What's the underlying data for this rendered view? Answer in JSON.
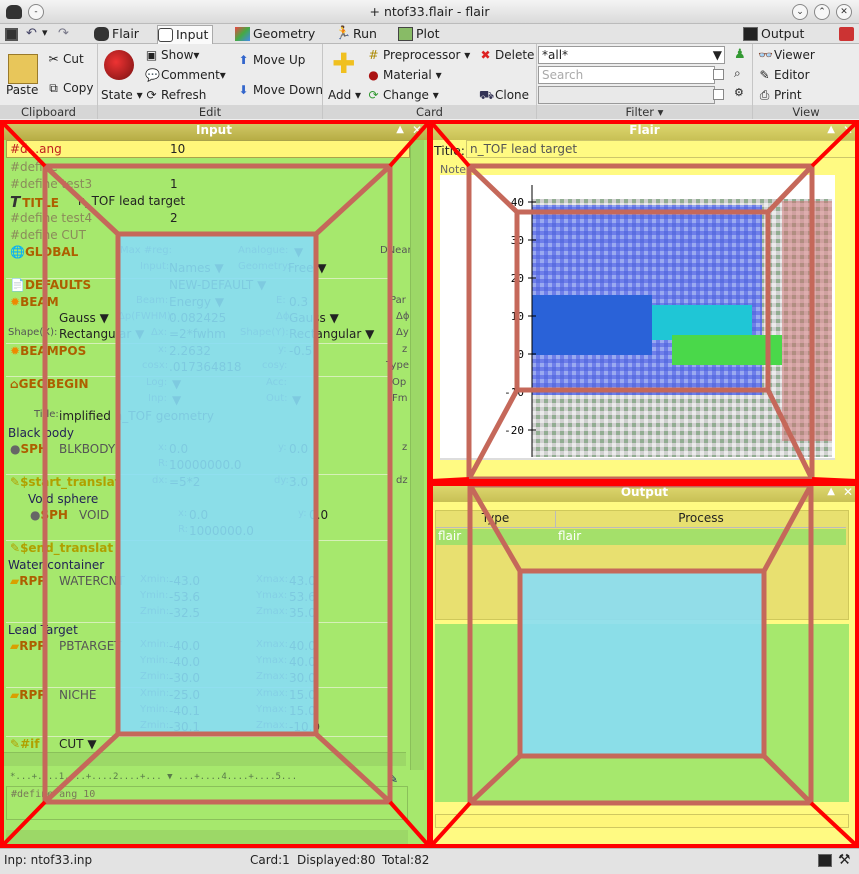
{
  "window": {
    "title": "+ ntof33.flair - flair"
  },
  "tabs": [
    {
      "label": "Flair"
    },
    {
      "label": "Input"
    },
    {
      "label": "Geometry"
    },
    {
      "label": "Run"
    },
    {
      "label": "Plot"
    }
  ],
  "output_tab": "Output",
  "clipboard": {
    "paste": "Paste",
    "cut": "Cut",
    "copy": "Copy",
    "label": "Clipboard"
  },
  "edit": {
    "state": "State",
    "show": "Show",
    "comment": "Comment",
    "refresh": "Refresh",
    "move_up": "Move Up",
    "move_down": "Move Down",
    "label": "Edit"
  },
  "card": {
    "add": "Add",
    "preprocessor": "Preprocessor",
    "material": "Material",
    "change": "Change",
    "delete": "Delete",
    "clone": "Clone",
    "label": "Card"
  },
  "filter": {
    "value": "*all*",
    "search_placeholder": "Search",
    "label": "Filter"
  },
  "view": {
    "viewer": "Viewer",
    "editor": "Editor",
    "print": "Print",
    "label": "View"
  },
  "input_panel": {
    "title": "Input",
    "l1": {
      "tag": "#d...ang",
      "val": "10"
    },
    "l2": "#define",
    "l3": {
      "tag": "#define test3",
      "val": "1"
    },
    "l4": {
      "tag": "TITLE",
      "val": "n_TOF lead target"
    },
    "l5": {
      "tag": "#define test4",
      "val": "2"
    },
    "l6": "#define CUT",
    "global": {
      "tag": "GLOBAL",
      "maxreg": "Max #reg:",
      "analogue": "Analogue:",
      "dnear": "DNear",
      "input_lbl": "Input:",
      "input_val": "Names",
      "geometry_lbl": "Geometry:",
      "geometry_val": "Free"
    },
    "defaults": {
      "tag": "DEFAULTS",
      "val": "NEW-DEFAULT"
    },
    "beam": {
      "tag": "BEAM",
      "beam_lbl": "Beam:",
      "beam_val": "Energy",
      "e_lbl": "E:",
      "e_val": "0.3",
      "par": "Par",
      "dp_val": "Gauss",
      "dp_lbl": "Δp(FWHM):",
      "dp_num": "0.082425",
      "dphi_lbl": "Δϕ:",
      "dphi_val": "Gauss",
      "dphi2": "Δϕ",
      "shapex_lbl": "Shape(X):",
      "shapex_val": "Rectangular",
      "dx_lbl": "Δx:",
      "dx_val": "=2*fwhm",
      "shapey_lbl": "Shape(Y):",
      "shapey_val": "Rectangular",
      "dy": "Δy"
    },
    "beampos": {
      "tag": "BEAMPOS",
      "x_lbl": "x:",
      "x_val": "2.2632",
      "y_lbl": "y:",
      "y_val": "-0.5",
      "z": "z",
      "cosx_lbl": "cosx:",
      "cosx_val": ".017364818",
      "cosy": "cosy:",
      "type": "Type"
    },
    "geobegin": {
      "tag": "GEOBEGIN",
      "log": "Log:",
      "acc": "Acc:",
      "op": "Op",
      "inp": "Inp:",
      "out": "Out:",
      "fmt": "Fm",
      "title_lbl": "Title:",
      "title_val": "implified n_TOF geometry"
    },
    "blackbody_comment": "Black body",
    "sph1": {
      "tag": "SPH",
      "name": "BLKBODY",
      "x": "x:",
      "xv": "0.0",
      "y": "y:",
      "yv": "0.0",
      "r": "R:",
      "rv": "10000000.0",
      "z": "z"
    },
    "start_translat": {
      "tag": "$start_translat",
      "dx": "dx:",
      "dxv": "=5*2",
      "dy": "dy:",
      "dyv": "3.0",
      "dz": "dz"
    },
    "void_comment": "Void sphere",
    "sph2": {
      "tag": "SPH",
      "name": "VOID",
      "x": "x:",
      "xv": "0.0",
      "y": "y:",
      "yv": "0.0",
      "r": "R:",
      "rv": "1000000.0"
    },
    "end_translat": "$end_translat",
    "water_comment": "Water container",
    "rpp1": {
      "tag": "RPP",
      "name": "WATERCNT",
      "xmin": "-43.0",
      "xmax": "43.0",
      "ymin": "-53.6",
      "ymax": "53.6",
      "zmin": "-32.5",
      "zmax": "35.0"
    },
    "lead_comment": "Lead Target",
    "rpp2": {
      "tag": "RPP",
      "name": "PBTARGET",
      "xmin": "-40.0",
      "xmax": "40.0",
      "ymin": "-40.0",
      "ymax": "40.0",
      "zmin": "-30.0",
      "zmax": "30.0"
    },
    "rpp3": {
      "tag": "RPP",
      "name": "NICHE",
      "xmin": "-25.0",
      "xmax": "15.0",
      "ymin": "-40.1",
      "ymax": "15.0",
      "zmin": "-30.1",
      "zmax": "-10.0"
    },
    "lbl_xmin": "Xmin:",
    "lbl_xmax": "Xmax:",
    "lbl_ymin": "Ymin:",
    "lbl_ymax": "Ymax:",
    "lbl_zmin": "Zmin:",
    "lbl_zmax": "Zmax:",
    "ifcut": {
      "tag": "#if",
      "val": "CUT"
    },
    "ruler": "*...+....1....+....2....+...  ▼  ...+....4....+....5...",
    "editor_line": "#define ang 10"
  },
  "flair_panel": {
    "title": "Flair",
    "title_lbl": "Title:",
    "title_val": "n_TOF lead target",
    "notes": "Notes"
  },
  "plot_axis": {
    "ticks": [
      "40",
      "30",
      "20",
      "10",
      "0",
      "-10",
      "-20"
    ]
  },
  "output_panel": {
    "title": "Output",
    "col_type": "Type",
    "col_process": "Process",
    "row_type": "flair",
    "row_process": "flair"
  },
  "status": {
    "inp": "Inp: ntof33.inp",
    "card": "Card:1",
    "displayed": "Displayed:80",
    "total": "Total:82"
  },
  "colors": {
    "input_bg": "#a6e86d",
    "yellow_panel": "#fffa82",
    "blue_overlay": "#88ddf5",
    "red_outline": "#ff0000",
    "brown_outline": "#c5685a"
  }
}
